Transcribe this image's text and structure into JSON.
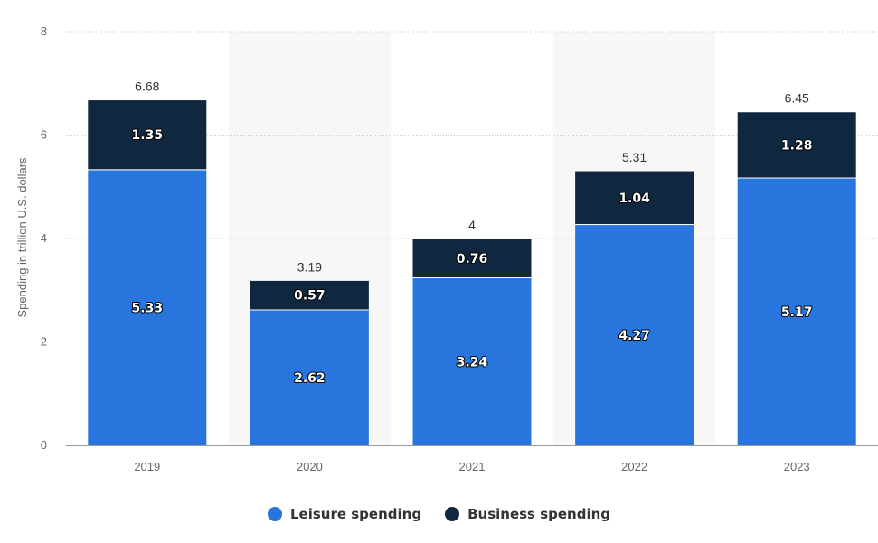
{
  "chart_data": {
    "type": "bar",
    "stacked": true,
    "categories": [
      "2019",
      "2020",
      "2021",
      "2022",
      "2023"
    ],
    "series": [
      {
        "name": "Leisure spending",
        "color": "#2876dd",
        "values": [
          5.33,
          2.62,
          3.24,
          4.27,
          5.17
        ]
      },
      {
        "name": "Business spending",
        "color": "#0f2840",
        "values": [
          1.35,
          0.57,
          0.76,
          1.04,
          1.28
        ]
      }
    ],
    "totals": [
      "6.68",
      "3.19",
      "4",
      "5.31",
      "6.45"
    ],
    "ylabel": "Spending in trillion U.S. dollars",
    "ylim": [
      0,
      8
    ],
    "yticks": [
      "0",
      "2",
      "4",
      "6",
      "8"
    ],
    "grid": true,
    "legend_position": "bottom-center"
  }
}
